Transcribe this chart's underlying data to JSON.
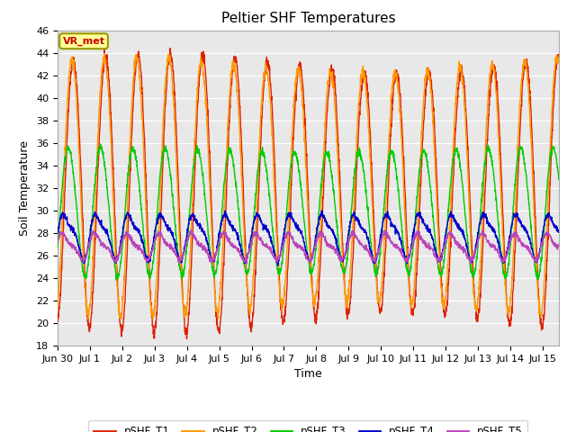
{
  "title": "Peltier SHF Temperatures",
  "xlabel": "Time",
  "ylabel": "Soil Temperature",
  "ylim": [
    18,
    46
  ],
  "yticks": [
    18,
    20,
    22,
    24,
    26,
    28,
    30,
    32,
    34,
    36,
    38,
    40,
    42,
    44,
    46
  ],
  "fig_bg_color": "#ffffff",
  "plot_bg_color": "#e8e8e8",
  "grid_color": "#ffffff",
  "series": {
    "pSHF_T1": {
      "color": "#dd2200",
      "lw": 1.0
    },
    "pSHF_T2": {
      "color": "#ff9900",
      "lw": 1.0
    },
    "pSHF_T3": {
      "color": "#00cc00",
      "lw": 1.0
    },
    "pSHF_T4": {
      "color": "#0000cc",
      "lw": 1.0
    },
    "pSHF_T5": {
      "color": "#bb44bb",
      "lw": 1.0
    }
  },
  "annotation_text": "VR_met",
  "annotation_color": "#cc0000",
  "annotation_bg": "#ffff99",
  "annotation_border": "#999900",
  "days": 15.5,
  "points_per_day": 144,
  "title_fontsize": 11,
  "label_fontsize": 9,
  "tick_fontsize": 8
}
